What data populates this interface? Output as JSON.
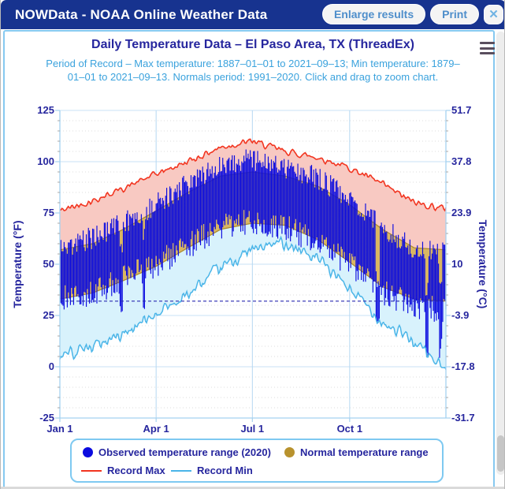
{
  "window": {
    "title": "NOWData - NOAA Online Weather Data",
    "buttons": {
      "enlarge": "Enlarge results",
      "print": "Print",
      "close": "✕"
    }
  },
  "chart": {
    "title": "Daily Temperature Data – El Paso Area, TX (ThreadEx)",
    "subtitle": "Period of Record – Max temperature: 1887–01–01 to 2021–09–13; Min temperature: 1879–01–01 to 2021–09–13. Normals period: 1991–2020. Click and drag to zoom chart.",
    "y_left_title": "Temperature (°F)",
    "y_right_title": "Temperature (°C)",
    "legend": [
      {
        "marker": "circle",
        "color": "#0b0bdf",
        "label": "Observed temperature range (2020)"
      },
      {
        "marker": "circle",
        "color": "#b8922d",
        "label": "Normal temperature range"
      },
      {
        "marker": "line",
        "color": "#f23520",
        "label": "Record Max"
      },
      {
        "marker": "line",
        "color": "#4ab5e8",
        "label": "Record Min"
      }
    ]
  },
  "chart_data": {
    "type": "composite: record-range areas + normal band + observed daily range columns",
    "x_axis": {
      "days_in_year": 366,
      "ticks": [
        {
          "label": "Jan 1",
          "day": 1
        },
        {
          "label": "Apr 1",
          "day": 92
        },
        {
          "label": "Jul 1",
          "day": 183
        },
        {
          "label": "Oct 1",
          "day": 275
        }
      ]
    },
    "y_axis_f": {
      "min": -25,
      "max": 125,
      "ticks": [
        125,
        100,
        75,
        50,
        25,
        0,
        -25
      ],
      "minor_step": 5
    },
    "y_axis_c": {
      "tick_labels": [
        "51.7",
        "37.8",
        "23.9",
        "10",
        "-3.9",
        "-17.8",
        "-31.7"
      ]
    },
    "freezing_line": {
      "value": 32,
      "style": "dashed",
      "color": "#2a2ab0"
    },
    "anchors_day_of_year": [
      1,
      32,
      61,
      92,
      122,
      153,
      183,
      214,
      245,
      275,
      306,
      336,
      366
    ],
    "series": [
      {
        "name": "Record Max",
        "type": "line",
        "color": "#f23520",
        "values": [
          76,
          81,
          87,
          94,
          100,
          107,
          110,
          105,
          102,
          97,
          89,
          80,
          77
        ]
      },
      {
        "name": "Normal max",
        "type": "band-top",
        "color": "#a9892c",
        "values": [
          57,
          60,
          67,
          76,
          85,
          93,
          95,
          93,
          88,
          79,
          67,
          58,
          57
        ]
      },
      {
        "name": "Normal min",
        "type": "band-bottom",
        "color": "#a9892c",
        "values": [
          33,
          36,
          42,
          49,
          58,
          67,
          70,
          69,
          62,
          51,
          39,
          33,
          32
        ]
      },
      {
        "name": "Record Min",
        "type": "line",
        "color": "#4ab5e8",
        "values": [
          6,
          10,
          16,
          26,
          35,
          48,
          57,
          61,
          52,
          38,
          22,
          12,
          -2
        ]
      },
      {
        "name": "Observed high (2020)",
        "type": "column-top",
        "color": "#0b0bdf",
        "values": [
          58,
          63,
          70,
          79,
          89,
          99,
          101,
          97,
          92,
          82,
          68,
          57,
          55
        ]
      },
      {
        "name": "Observed low (2020)",
        "type": "column-bottom",
        "color": "#0b0bdf",
        "values": [
          33,
          36,
          43,
          50,
          59,
          68,
          71,
          68,
          61,
          50,
          36,
          30,
          27
        ]
      }
    ],
    "fills": {
      "record_above_normal": "#f8c9c2",
      "normal_band": "#d9b662",
      "normal_band_edge": "#a9892c",
      "record_below_normal": "#d8f2fc"
    },
    "grid": {
      "major_color": "#c9e2f6",
      "vertical_color": "#b5d8f2",
      "minor_color": "#dcdcdc",
      "axis_line_color": "#a5d2f0",
      "minor_tick_color": "#aaaaaa"
    },
    "jitter": {
      "seed": 42,
      "record_max": 2.2,
      "record_min": 4.5,
      "observed_high": 5.5,
      "observed_low": 6.5,
      "cold_events": [
        {
          "start_day": 58,
          "length": 3,
          "drop": 14
        },
        {
          "start_day": 80,
          "length": 2,
          "drop": 12
        },
        {
          "start_day": 300,
          "length": 4,
          "drop": 28
        },
        {
          "start_day": 347,
          "length": 3,
          "drop": 18
        },
        {
          "start_day": 360,
          "length": 3,
          "drop": 16
        }
      ]
    }
  }
}
